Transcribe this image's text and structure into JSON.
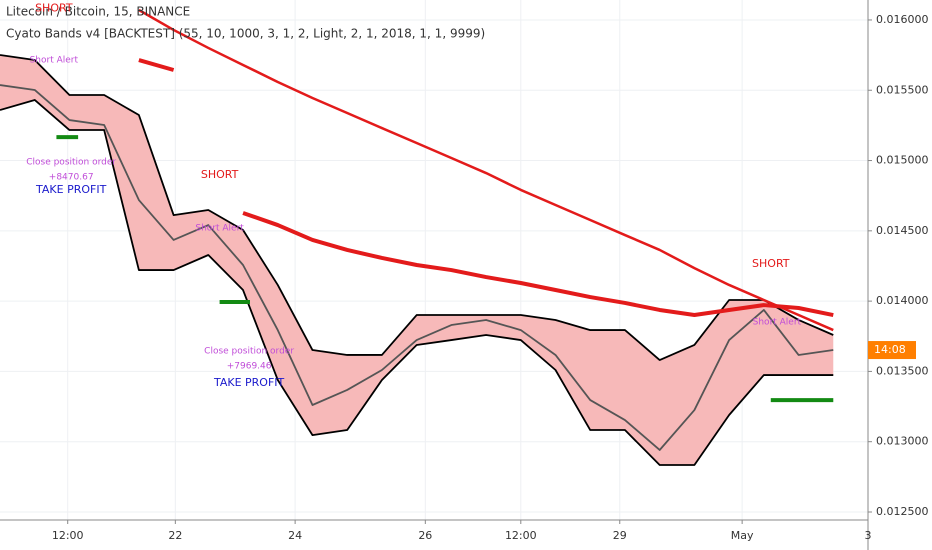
{
  "chart_data": {
    "type": "line",
    "title": "Litecoin / Bitcoin, 15, BINANCE",
    "subtitle": "Cyato Bands v4 [BACKTEST] (55, 10, 1000, 3, 1, 2, Light, 2, 1, 2018, 1, 1, 9999)",
    "x": [
      0,
      4,
      8,
      12,
      16,
      20,
      24,
      28,
      32,
      36,
      40,
      44,
      48,
      52,
      56,
      60,
      64,
      68,
      72,
      76,
      80,
      84,
      88,
      92,
      96
    ],
    "band_fill": "#f7b9b9",
    "series": [
      {
        "color": "#000000",
        "values": [
          0.015751,
          0.015715,
          0.015466,
          0.015466,
          0.015324,
          0.014612,
          0.014648,
          0.014506,
          0.014115,
          0.013652,
          0.013617,
          0.013617,
          0.013901,
          0.013901,
          0.013901,
          0.013901,
          0.013866,
          0.013794,
          0.013794,
          0.013581,
          0.013688,
          0.014008,
          0.014008,
          0.013866,
          0.013759
        ]
      },
      {
        "color": "#000000",
        "values": [
          0.015359,
          0.015431,
          0.015217,
          0.015217,
          0.014221,
          0.014221,
          0.014328,
          0.014079,
          0.013439,
          0.013047,
          0.013083,
          0.013439,
          0.013688,
          0.013723,
          0.013759,
          0.013723,
          0.01351,
          0.013083,
          0.013083,
          0.012834,
          0.012834,
          0.01319,
          0.013474,
          0.013474,
          0.013474
        ]
      },
      {
        "color": "#555555",
        "values": [
          0.015537,
          0.015502,
          0.015288,
          0.015253,
          0.014719,
          0.014435,
          0.014541,
          0.014257,
          0.013794,
          0.013261,
          0.013368,
          0.01351,
          0.013723,
          0.01383,
          0.013866,
          0.013794,
          0.013617,
          0.013296,
          0.013154,
          0.012941,
          0.013225,
          0.013723,
          0.013937,
          0.013617,
          0.013652
        ]
      },
      {
        "color": "#e31b1b",
        "values": [
          null,
          null,
          null,
          null,
          0.015715,
          0.015644,
          null,
          0.014627,
          0.014541,
          0.014435,
          0.014364,
          0.014307,
          0.014257,
          0.014221,
          0.014171,
          0.014129,
          0.014079,
          0.014029,
          0.013987,
          0.013937,
          0.013901,
          0.013937,
          0.013972,
          0.013951,
          0.013901
        ]
      },
      {
        "color": "#e31b1b",
        "values": [
          null,
          null,
          null,
          null,
          0.016071,
          0.015929,
          0.015801,
          0.01568,
          0.015559,
          0.015445,
          0.015338,
          0.015231,
          0.015125,
          0.015018,
          0.014911,
          0.014791,
          0.014684,
          0.014577,
          0.01447,
          0.014364,
          0.014235,
          0.014115,
          0.014008,
          0.013901,
          0.013794
        ]
      }
    ],
    "take_profit_levels": [
      {
        "x": [
          6.5,
          9
        ],
        "value": 0.015167
      },
      {
        "x": [
          25.3,
          28.8
        ],
        "value": 0.013994
      },
      {
        "x": [
          88.8,
          96
        ],
        "value": 0.013296
      }
    ],
    "annotations": [
      {
        "text": "SHORT",
        "x": 6.2,
        "y": 0.01608,
        "color": "#e31b1b"
      },
      {
        "text": "Short Alert",
        "x": 6.2,
        "y": 0.015715,
        "color": "#c04dd8"
      },
      {
        "text": "Close position order",
        "x": 8.2,
        "y": 0.01499,
        "color": "#c04dd8"
      },
      {
        "text": "+8470.67",
        "x": 8.2,
        "y": 0.014883,
        "color": "#c04dd8"
      },
      {
        "text": "TAKE PROFIT",
        "x": 8.2,
        "y": 0.01479,
        "color": "#1a1acc"
      },
      {
        "text": "SHORT",
        "x": 25.3,
        "y": 0.014897,
        "color": "#e31b1b"
      },
      {
        "text": "Short Alert",
        "x": 25.3,
        "y": 0.01452,
        "color": "#c04dd8"
      },
      {
        "text": "Close position order",
        "x": 28.7,
        "y": 0.013645,
        "color": "#c04dd8"
      },
      {
        "text": "+7969.46",
        "x": 28.7,
        "y": 0.013538,
        "color": "#c04dd8"
      },
      {
        "text": "TAKE PROFIT",
        "x": 28.7,
        "y": 0.013417,
        "color": "#1a1acc"
      },
      {
        "text": "SHORT",
        "x": 88.8,
        "y": 0.014264,
        "color": "#e31b1b"
      },
      {
        "text": "Short Alert",
        "x": 89.5,
        "y": 0.013851,
        "color": "#c04dd8"
      }
    ],
    "price_label": "14:08",
    "xlim": [
      0,
      100
    ],
    "xticks": [
      {
        "value": 7.8,
        "label": "12:00"
      },
      {
        "value": 20.2,
        "label": "22"
      },
      {
        "value": 34,
        "label": "24"
      },
      {
        "value": 49,
        "label": "26"
      },
      {
        "value": 60,
        "label": "12:00"
      },
      {
        "value": 71.4,
        "label": "29"
      },
      {
        "value": 85.5,
        "label": "May"
      },
      {
        "value": 100,
        "label": "3"
      }
    ],
    "ylim": [
      0.012443,
      0.016142
    ],
    "yticks": [
      {
        "value": 0.0125,
        "label": "0.012500"
      },
      {
        "value": 0.013,
        "label": "0.013000"
      },
      {
        "value": 0.0135,
        "label": "0.013500"
      },
      {
        "value": 0.014,
        "label": "0.014000"
      },
      {
        "value": 0.0145,
        "label": "0.014500"
      },
      {
        "value": 0.015,
        "label": "0.015000"
      },
      {
        "value": 0.0155,
        "label": "0.015500"
      },
      {
        "value": 0.016,
        "label": "0.016000"
      }
    ],
    "grid": true
  }
}
